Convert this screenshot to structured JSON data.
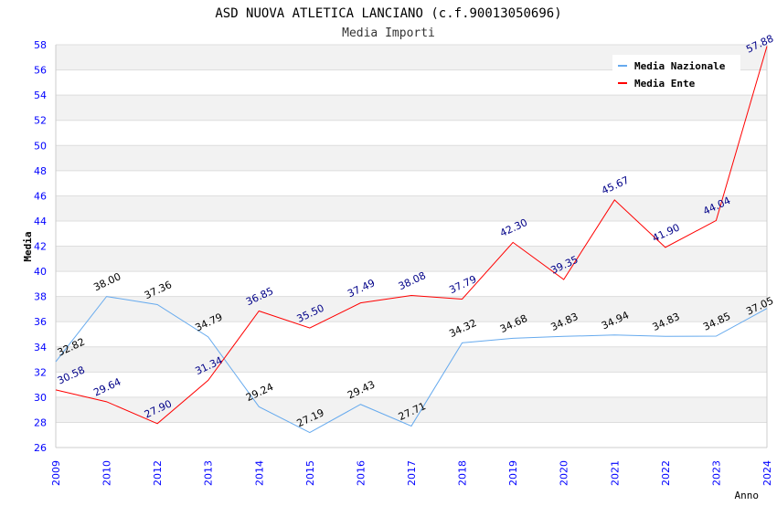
{
  "chart_data": {
    "type": "line",
    "title": "ASD NUOVA ATLETICA LANCIANO (c.f.90013050696)",
    "subtitle": "Media Importi",
    "xlabel": "Anno",
    "ylabel": "Media",
    "ylim": [
      26,
      58
    ],
    "yticks": [
      "26",
      "28",
      "30",
      "32",
      "34",
      "36",
      "38",
      "40",
      "42",
      "44",
      "46",
      "48",
      "50",
      "52",
      "54",
      "56",
      "58"
    ],
    "categories": [
      "2009",
      "2010",
      "2012",
      "2013",
      "2014",
      "2015",
      "2016",
      "2017",
      "2018",
      "2019",
      "2020",
      "2021",
      "2022",
      "2023",
      "2024"
    ],
    "legend_position": "top-right",
    "grid": true,
    "series": [
      {
        "name": "Media Nazionale",
        "color": "#66aaee",
        "label_color": "#000000",
        "values": [
          32.82,
          38.0,
          37.36,
          34.79,
          29.24,
          27.19,
          29.43,
          27.71,
          34.32,
          34.68,
          34.83,
          34.94,
          34.83,
          34.85,
          37.05
        ],
        "labels": [
          "32.82",
          "38.00",
          "37.36",
          "34.79",
          "29.24",
          "27.19",
          "29.43",
          "27.71",
          "34.32",
          "34.68",
          "34.83",
          "34.94",
          "34.83",
          "34.85",
          "37.05"
        ]
      },
      {
        "name": "Media Ente",
        "color": "#ff0000",
        "label_color": "#000088",
        "values": [
          30.58,
          29.64,
          27.9,
          31.34,
          36.85,
          35.5,
          37.49,
          38.08,
          37.79,
          42.3,
          39.35,
          45.67,
          41.9,
          44.04,
          57.88
        ],
        "labels": [
          "30.58",
          "29.64",
          "27.90",
          "31.34",
          "36.85",
          "35.50",
          "37.49",
          "38.08",
          "37.79",
          "42.30",
          "39.35",
          "45.67",
          "41.90",
          "44.04",
          "57.88"
        ]
      }
    ]
  }
}
